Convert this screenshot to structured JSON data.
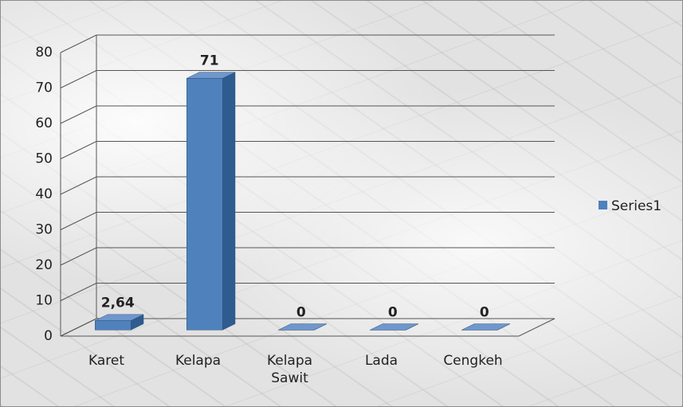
{
  "chart_data": {
    "type": "bar3d",
    "categories": [
      "Karet",
      "Kelapa",
      "Kelapa Sawit",
      "Lada",
      "Cengkeh"
    ],
    "series": [
      {
        "name": "Series1",
        "color": "#4f81bd",
        "values": [
          2.64,
          71,
          0,
          0,
          0
        ],
        "value_labels": [
          "2,64",
          "71",
          "0",
          "0",
          "0"
        ]
      }
    ],
    "ylim": [
      0,
      80
    ],
    "yticks": [
      0,
      10,
      20,
      30,
      40,
      50,
      60,
      70,
      80
    ],
    "grid": true,
    "legend": "right"
  }
}
